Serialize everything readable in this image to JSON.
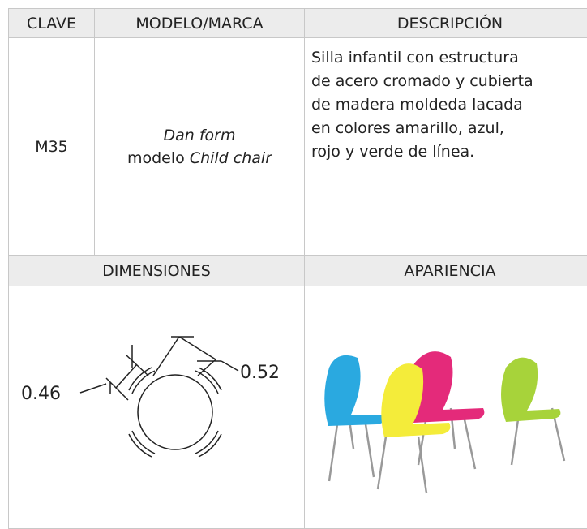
{
  "header": {
    "clave": "CLAVE",
    "modelo": "MODELO/MARCA",
    "descripcion": "DESCRIPCIÓN"
  },
  "item": {
    "clave": "M35",
    "brand": "Dan form",
    "model_prefix": "modelo",
    "model_name": "Child chair",
    "description": [
      "Silla infantil con estructura",
      "de acero cromado y cubierta",
      "de madera moldeda lacada",
      "en colores amarillo, azul,",
      "rojo y verde de línea."
    ]
  },
  "section": {
    "dimensiones": "DIMENSIONES",
    "apariencia": "APARIENCIA"
  },
  "dimensions": {
    "width": "0.46",
    "depth": "0.52"
  }
}
